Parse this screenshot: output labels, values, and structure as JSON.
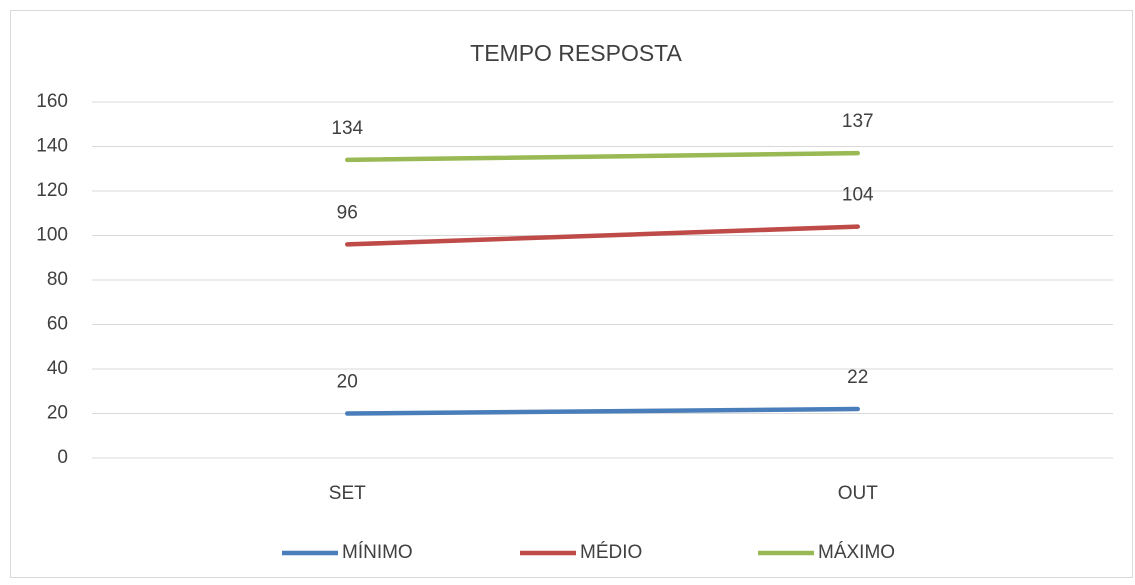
{
  "chart_data": {
    "type": "line",
    "title": "TEMPO RESPOSTA",
    "categories": [
      "SET",
      "OUT"
    ],
    "series": [
      {
        "name": "MÍNIMO",
        "color": "#4a7ebb",
        "values": [
          20,
          22
        ]
      },
      {
        "name": "MÉDIO",
        "color": "#be4b48",
        "values": [
          96,
          104
        ]
      },
      {
        "name": "MÁXIMO",
        "color": "#98b954",
        "values": [
          134,
          137
        ]
      }
    ],
    "ylim": [
      0,
      160
    ],
    "yticks": [
      0,
      20,
      40,
      60,
      80,
      100,
      120,
      140,
      160
    ],
    "grid": true,
    "legend": "bottom",
    "data_labels": true
  }
}
